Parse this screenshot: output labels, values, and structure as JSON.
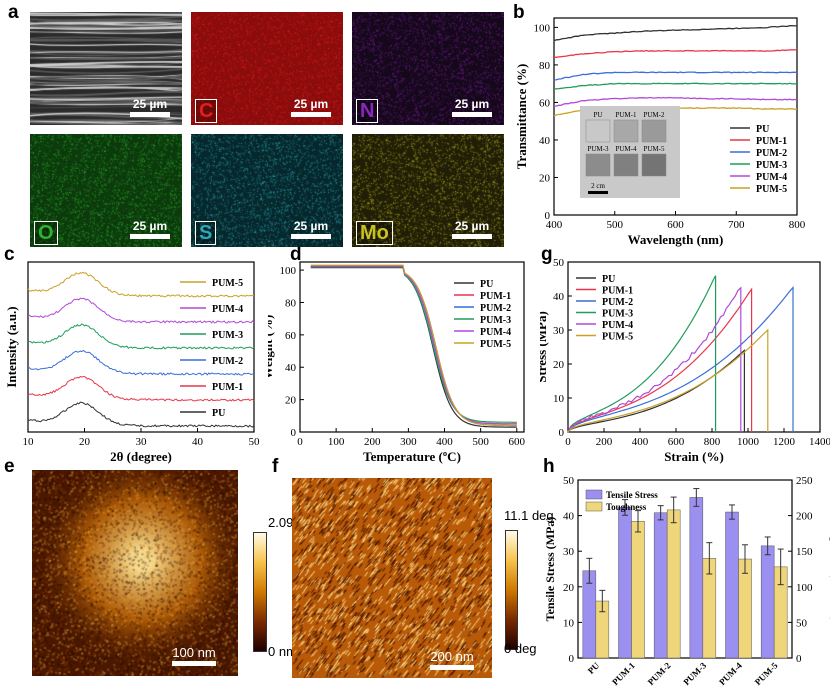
{
  "panel_labels": {
    "a": "a",
    "b": "b",
    "c": "c",
    "d": "d",
    "e": "e",
    "f": "f",
    "g": "g",
    "h": "h"
  },
  "sem_maps": {
    "tiles": [
      {
        "element": "",
        "scale": "25 µm",
        "color": "#9a9a9a",
        "base": "#2a2a2a"
      },
      {
        "element": "C",
        "scale": "25 µm",
        "color": "#e02020",
        "base": "#8a0c0c"
      },
      {
        "element": "N",
        "scale": "25 µm",
        "color": "#7a1fa0",
        "base": "#15081a"
      },
      {
        "element": "O",
        "scale": "25 µm",
        "color": "#2fb02f",
        "base": "#0c3a0c"
      },
      {
        "element": "S",
        "scale": "25 µm",
        "color": "#2aa8b8",
        "base": "#06272b"
      },
      {
        "element": "Mo",
        "scale": "25 µm",
        "color": "#b8b020",
        "base": "#201e06"
      }
    ]
  },
  "afm": {
    "height": {
      "max_label": "2.09 nm",
      "min_label": "0 nm",
      "scale": "100 nm"
    },
    "phase": {
      "max_label": "11.1 deg",
      "min_label": "0 deg",
      "scale": "200 nm"
    }
  },
  "chart_data": [
    {
      "id": "b",
      "type": "line",
      "xlabel": "Wavelength (nm)",
      "ylabel": "Transmittance (%)",
      "xlim": [
        400,
        800
      ],
      "ylim": [
        0,
        105
      ],
      "xticks": [
        400,
        500,
        600,
        700,
        800
      ],
      "yticks": [
        0,
        20,
        40,
        60,
        80,
        100
      ],
      "inset": {
        "labels": [
          "PU",
          "PUM-1",
          "PUM-2",
          "PUM-3",
          "PUM-4",
          "PUM-5"
        ],
        "scale": "2 cm"
      },
      "series": [
        {
          "name": "PU",
          "color": "#333333",
          "x": [
            400,
            450,
            500,
            550,
            600,
            650,
            700,
            750,
            800
          ],
          "y": [
            93,
            96,
            97,
            98,
            98.5,
            99,
            99.5,
            100,
            101
          ]
        },
        {
          "name": "PUM-1",
          "color": "#e8354a",
          "x": [
            400,
            450,
            500,
            550,
            600,
            650,
            700,
            750,
            800
          ],
          "y": [
            84,
            86,
            87,
            87.5,
            87.5,
            87.5,
            87.5,
            87.5,
            88
          ]
        },
        {
          "name": "PUM-2",
          "color": "#3a6fd8",
          "x": [
            400,
            450,
            500,
            550,
            600,
            650,
            700,
            750,
            800
          ],
          "y": [
            72,
            75,
            76,
            76,
            76,
            76,
            76,
            76,
            76
          ]
        },
        {
          "name": "PUM-3",
          "color": "#1f9e5a",
          "x": [
            400,
            450,
            500,
            550,
            600,
            650,
            700,
            750,
            800
          ],
          "y": [
            67,
            69,
            70,
            70,
            70,
            70,
            70,
            70,
            70
          ]
        },
        {
          "name": "PUM-4",
          "color": "#b04ad8",
          "x": [
            400,
            450,
            500,
            550,
            600,
            650,
            700,
            750,
            800
          ],
          "y": [
            58,
            61,
            62,
            62.5,
            62.5,
            62,
            62,
            61.5,
            61.5
          ]
        },
        {
          "name": "PUM-5",
          "color": "#c9a227",
          "x": [
            400,
            450,
            500,
            550,
            600,
            650,
            700,
            750,
            800
          ],
          "y": [
            53,
            56,
            57,
            57,
            57,
            57,
            57,
            56.5,
            56.5
          ]
        }
      ]
    },
    {
      "id": "c",
      "type": "line",
      "xlabel": "2θ (degree)",
      "ylabel": "Intensity (a.u.)",
      "xlim": [
        10,
        50
      ],
      "xticks": [
        10,
        20,
        30,
        40,
        50
      ],
      "series": [
        {
          "name": "PU",
          "color": "#333333",
          "offset": 0
        },
        {
          "name": "PUM-1",
          "color": "#e8354a",
          "offset": 1
        },
        {
          "name": "PUM-2",
          "color": "#3a6fd8",
          "offset": 2
        },
        {
          "name": "PUM-3",
          "color": "#1f9e5a",
          "offset": 3
        },
        {
          "name": "PUM-4",
          "color": "#b04ad8",
          "offset": 4
        },
        {
          "name": "PUM-5",
          "color": "#c9a227",
          "offset": 5
        }
      ],
      "peak_center": 19.5
    },
    {
      "id": "d",
      "type": "line",
      "xlabel": "Temperature (ºC)",
      "ylabel": "Weight (%)",
      "xlim": [
        0,
        620
      ],
      "ylim": [
        0,
        105
      ],
      "xticks": [
        0,
        100,
        200,
        300,
        400,
        500,
        600
      ],
      "yticks": [
        0,
        20,
        40,
        60,
        80,
        100
      ],
      "series": [
        {
          "name": "PU",
          "color": "#333333",
          "residue": 3
        },
        {
          "name": "PUM-1",
          "color": "#e8354a",
          "residue": 5
        },
        {
          "name": "PUM-2",
          "color": "#3a6fd8",
          "residue": 4
        },
        {
          "name": "PUM-3",
          "color": "#1f9e5a",
          "residue": 6
        },
        {
          "name": "PUM-4",
          "color": "#b04ad8",
          "residue": 5
        },
        {
          "name": "PUM-5",
          "color": "#c9a227",
          "residue": 4
        }
      ]
    },
    {
      "id": "g",
      "type": "line",
      "xlabel": "Strain (%)",
      "ylabel": "Stress (MPa)",
      "xlim": [
        0,
        1400
      ],
      "ylim": [
        0,
        50
      ],
      "xticks": [
        0,
        200,
        400,
        600,
        800,
        1000,
        1200,
        1400
      ],
      "yticks": [
        0,
        10,
        20,
        30,
        40,
        50
      ],
      "series": [
        {
          "name": "PU",
          "color": "#333333",
          "break_strain": 980,
          "break_stress": 24
        },
        {
          "name": "PUM-1",
          "color": "#e8354a",
          "break_strain": 1020,
          "break_stress": 42
        },
        {
          "name": "PUM-2",
          "color": "#3a6fd8",
          "break_strain": 1250,
          "break_stress": 42.5
        },
        {
          "name": "PUM-3",
          "color": "#1f9e5a",
          "break_strain": 820,
          "break_stress": 46
        },
        {
          "name": "PUM-4",
          "color": "#b04ad8",
          "break_strain": 960,
          "break_stress": 42.5
        },
        {
          "name": "PUM-5",
          "color": "#c9a227",
          "break_strain": 1110,
          "break_stress": 30
        }
      ]
    },
    {
      "id": "h",
      "type": "bar",
      "categories": [
        "PU",
        "PUM-1",
        "PUM-2",
        "PUM-3",
        "PUM-4",
        "PUM-5"
      ],
      "ylabel": "Tensile Stress (MPa)",
      "y2label": "Toughness (MJ m⁻³)",
      "ylim": [
        0,
        50
      ],
      "y2lim": [
        0,
        250
      ],
      "yticks": [
        0,
        10,
        20,
        30,
        40,
        50
      ],
      "y2ticks": [
        0,
        50,
        100,
        150,
        200,
        250
      ],
      "series": [
        {
          "name": "Tensile Stress",
          "axis": "left",
          "color": "#9b8ff0",
          "values": [
            24.5,
            42.3,
            40.8,
            45.1,
            41,
            31.5
          ],
          "errors": [
            3.5,
            2.2,
            2,
            2.5,
            2,
            2.5
          ]
        },
        {
          "name": "Toughness",
          "axis": "right",
          "color": "#f0d67a",
          "values": [
            80,
            192,
            208,
            140,
            139,
            128
          ],
          "errors": [
            15,
            15,
            18,
            22,
            20,
            25
          ]
        }
      ]
    }
  ]
}
